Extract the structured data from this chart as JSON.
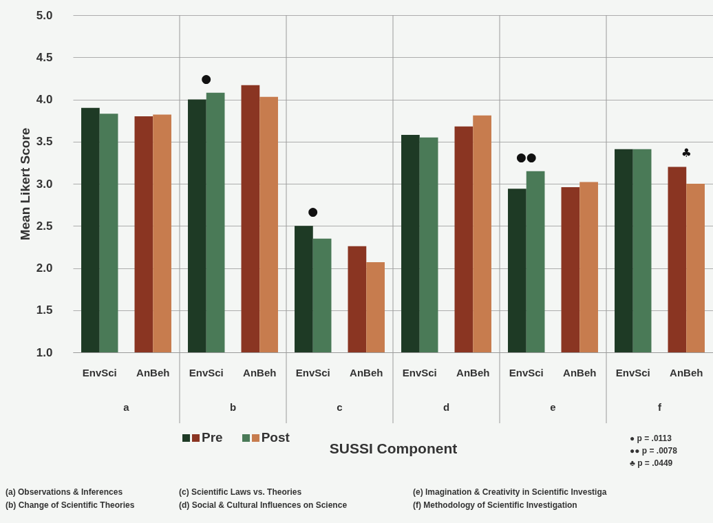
{
  "chart_data": {
    "type": "bar",
    "xlabel": "SUSSI Component",
    "ylabel": "Mean Likert Score",
    "categories": [
      "EnvSci",
      "AnBeh",
      "EnvSci",
      "AnBeh",
      "EnvSci",
      "AnBeh",
      "EnvSci",
      "AnBeh",
      "EnvSci",
      "AnBeh",
      "EnvSci",
      "AnBeh"
    ],
    "series": [
      {
        "name": "Pre",
        "colors": [
          "#1e3a25",
          "#8a3522",
          "#1e3a25",
          "#8a3522",
          "#1e3a25",
          "#8a3522",
          "#1e3a25",
          "#8a3522",
          "#1e3a25",
          "#8a3522",
          "#1e3a25",
          "#8a3522"
        ],
        "values": [
          3.9,
          3.8,
          4.0,
          4.17,
          2.5,
          2.26,
          3.58,
          3.68,
          2.94,
          2.96,
          3.41,
          3.2
        ]
      },
      {
        "name": "Post",
        "colors": [
          "#4a7a57",
          "#c77c4e",
          "#4a7a57",
          "#c77c4e",
          "#4a7a57",
          "#c77c4e",
          "#4a7a57",
          "#c77c4e",
          "#4a7a57",
          "#c77c4e",
          "#4a7a57",
          "#c77c4e"
        ],
        "values": [
          3.83,
          3.82,
          4.08,
          4.03,
          2.35,
          2.07,
          3.55,
          3.81,
          3.15,
          3.02,
          3.41,
          3.0
        ]
      }
    ],
    "ylim": [
      1,
      5
    ],
    "yticks": [
      {
        "value": 1,
        "label": "1.0"
      },
      {
        "value": 1.5,
        "label": "1.5"
      },
      {
        "value": 2,
        "label": "2.0"
      },
      {
        "value": 2.5,
        "label": "2.5"
      },
      {
        "value": 3,
        "label": "3.0"
      },
      {
        "value": 3.5,
        "label": "3.5"
      },
      {
        "value": 4,
        "label": "4.0"
      },
      {
        "value": 4.5,
        "label": "4.5"
      },
      {
        "value": 5,
        "label": "5.0"
      }
    ],
    "grid": true,
    "legend": "bottom",
    "annotations": [
      "a",
      "b",
      "c",
      "d",
      "e",
      "f",
      "● p = .0113",
      "●● p = .0078",
      "♣ p = .0449",
      "●",
      "●",
      "●●",
      "♣",
      "(a) Observations & Inferences",
      "(b) Change of Scientific Theories",
      "(c) Scientific Laws vs. Theories",
      "(d) Social & Cultural Influences on Science",
      "(e) Imagination & Creativity in Scientific Investiga",
      "(f) Methodology of Scientific Investigation"
    ]
  }
}
